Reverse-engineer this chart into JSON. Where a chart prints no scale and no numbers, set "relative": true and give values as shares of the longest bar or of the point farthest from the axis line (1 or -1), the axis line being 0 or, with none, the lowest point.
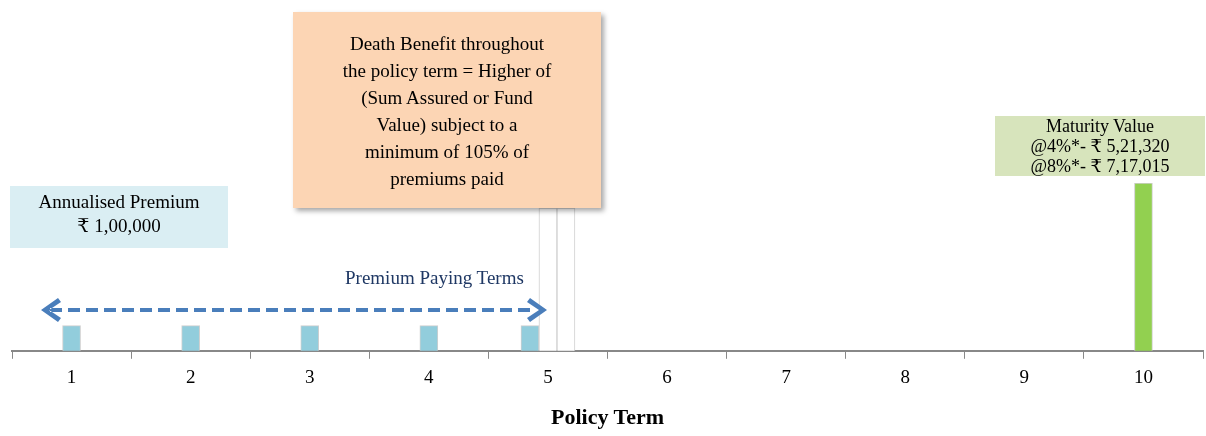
{
  "chart_data": {
    "type": "bar",
    "relative": true,
    "xlabel": "Policy Term",
    "categories": [
      "1",
      "2",
      "3",
      "4",
      "5",
      "6",
      "7",
      "8",
      "9",
      "10"
    ],
    "series": [
      {
        "color": "#92cddc",
        "values": [
          0.15,
          0.15,
          0.15,
          0.15,
          0.15,
          null,
          null,
          null,
          null,
          null
        ]
      },
      {
        "color": "#ffffff",
        "values": [
          null,
          null,
          null,
          null,
          0.85,
          null,
          null,
          null,
          null,
          null
        ]
      },
      {
        "color": "#ffffff",
        "values": [
          null,
          null,
          null,
          null,
          0.85,
          null,
          null,
          null,
          null,
          null
        ]
      },
      {
        "color": "#92d050",
        "values": [
          null,
          null,
          null,
          null,
          null,
          null,
          null,
          null,
          null,
          1
        ]
      }
    ],
    "annotations": [
      "Annualised Premium\n₹ 1,00,000",
      "Death Benefit throughout\nthe policy term = Higher of\n(Sum Assured or Fund\nValue) subject to a\nminimum of 105% of\npremiums paid",
      "Maturity Value\n@4%*-  ₹ 5,21,320\n@8%*- ₹ 7,17,015",
      "Premium Paying Terms"
    ],
    "grid": false,
    "legend": false
  }
}
